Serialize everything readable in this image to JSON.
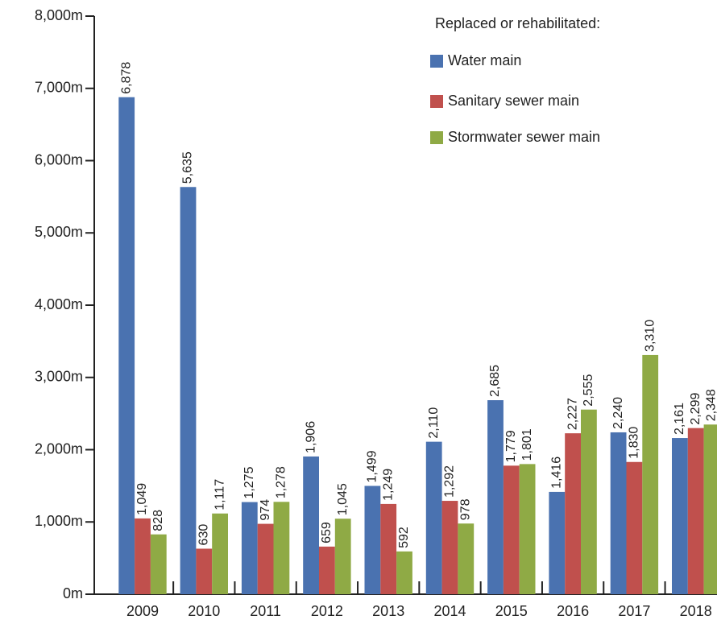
{
  "chart_data": {
    "type": "bar",
    "legend_title": "Replaced or rehabilitated:",
    "legend": "top-right",
    "categories": [
      "2009",
      "2010",
      "2011",
      "2012",
      "2013",
      "2014",
      "2015",
      "2016",
      "2017",
      "2018"
    ],
    "series": [
      {
        "name": "Water main",
        "color": "#4a72b0",
        "values": [
          6878,
          5635,
          1275,
          1906,
          1499,
          2110,
          2685,
          1416,
          2240,
          2161
        ],
        "value_labels": [
          "6,878",
          "5,635",
          "1,275",
          "1,906",
          "1,499",
          "2,110",
          "2,685",
          "1,416",
          "2,240",
          "2,161"
        ]
      },
      {
        "name": "Sanitary sewer main",
        "color": "#c0504d",
        "values": [
          1049,
          630,
          974,
          659,
          1249,
          1292,
          1779,
          2227,
          1830,
          2299
        ],
        "value_labels": [
          "1,049",
          "630",
          "974",
          "659",
          "1,249",
          "1,292",
          "1,779",
          "2,227",
          "1,830",
          "2,299"
        ]
      },
      {
        "name": "Stormwater sewer main",
        "color": "#8faa45",
        "values": [
          828,
          1117,
          1278,
          1045,
          592,
          978,
          1801,
          2555,
          3310,
          2348
        ],
        "value_labels": [
          "828",
          "1,117",
          "1,278",
          "1,045",
          "592",
          "978",
          "1,801",
          "2,555",
          "3,310",
          "2,348"
        ]
      }
    ],
    "ylim": [
      0,
      8000
    ],
    "yticks": [
      {
        "value": 0,
        "label": "0m"
      },
      {
        "value": 1000,
        "label": "1,000m"
      },
      {
        "value": 2000,
        "label": "2,000m"
      },
      {
        "value": 3000,
        "label": "3,000m"
      },
      {
        "value": 4000,
        "label": "4,000m"
      },
      {
        "value": 5000,
        "label": "5,000m"
      },
      {
        "value": 6000,
        "label": "6,000m"
      },
      {
        "value": 7000,
        "label": "7,000m"
      },
      {
        "value": 8000,
        "label": "8,000m"
      }
    ],
    "grid": false
  }
}
